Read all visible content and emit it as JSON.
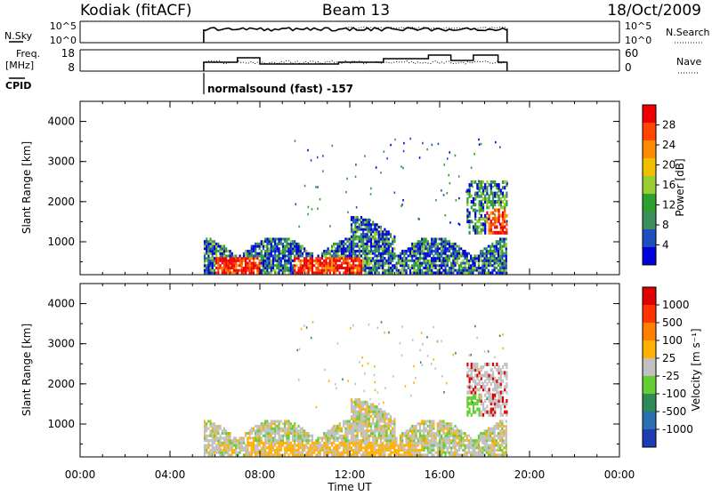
{
  "header": {
    "radar": "Kodiak (fitACF)",
    "beam": "Beam 13",
    "date": "18/Oct/2009"
  },
  "panels": {
    "nsky": {
      "left_label": "N.Sky",
      "right_label": "N.Search",
      "left_ticks": [
        "10^5",
        "10^0"
      ],
      "right_ticks": [
        "10^5",
        "10^0"
      ],
      "legend_style": "dotted"
    },
    "freq": {
      "left_label_1": "Freq.",
      "left_label_2": "[MHz]",
      "right_label": "Nave",
      "left_ticks": [
        "18",
        "8"
      ],
      "right_ticks": [
        "60",
        "0"
      ],
      "legend_style": "dotted"
    },
    "cpid": {
      "label": "CPID",
      "mode": "normalsound (fast) -157"
    }
  },
  "chart_data": [
    {
      "type": "heatmap",
      "name": "power",
      "ylabel": "Slant Range [km]",
      "y_ticks": [
        "4000",
        "3000",
        "2000",
        "1000"
      ],
      "ylim": [
        180,
        4500
      ],
      "colorbar_label": "Power [dB]",
      "colorbar_ticks": [
        "28",
        "24",
        "20",
        "16",
        "12",
        "8",
        "4"
      ],
      "colorbar_colors": [
        "#0000dd",
        "#1f4fbf",
        "#3a8f5a",
        "#2ea02e",
        "#9acd32",
        "#f0c000",
        "#ff8c00",
        "#ff4500",
        "#ee0000"
      ],
      "data_start_ut": "05:30",
      "data_end_ut": "19:00"
    },
    {
      "type": "heatmap",
      "name": "velocity",
      "ylabel": "Slant Range [km]",
      "y_ticks": [
        "4000",
        "3000",
        "2000",
        "1000"
      ],
      "ylim": [
        180,
        4500
      ],
      "colorbar_label": "Velocity [m s⁻¹]",
      "colorbar_ticks": [
        "1000",
        "500",
        "100",
        "25",
        "-25",
        "-100",
        "-500",
        "-1000"
      ],
      "colorbar_colors": [
        "#1e3cb4",
        "#2a6fb0",
        "#2e8b57",
        "#66cc33",
        "#c0c0c0",
        "#ffb000",
        "#ff7f00",
        "#ff3300",
        "#e00000"
      ],
      "data_start_ut": "05:30",
      "data_end_ut": "19:00"
    }
  ],
  "x_axis": {
    "label": "Time UT",
    "ticks": [
      "00:00",
      "04:00",
      "08:00",
      "12:00",
      "16:00",
      "20:00",
      "00:00"
    ]
  }
}
